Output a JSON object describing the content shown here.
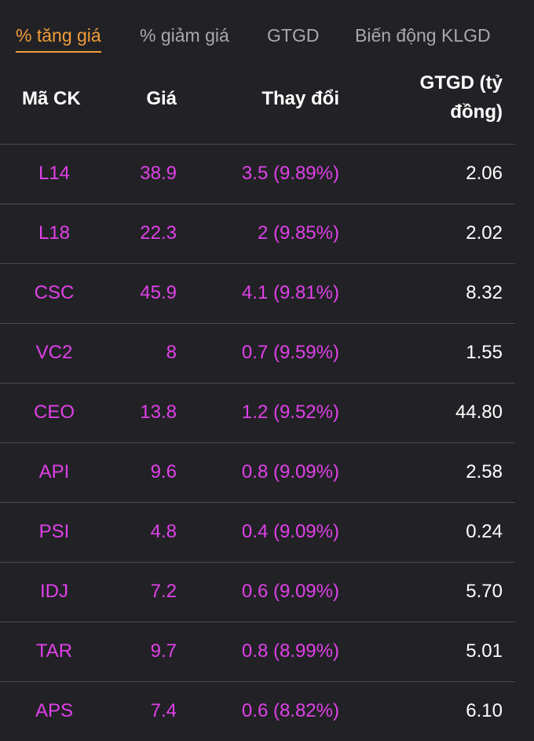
{
  "tabs": [
    {
      "label": "% tăng giá",
      "active": true
    },
    {
      "label": "% giảm giá",
      "active": false
    },
    {
      "label": "GTGD",
      "active": false
    },
    {
      "label": "Biến động KLGD",
      "active": false
    }
  ],
  "table": {
    "headers": {
      "code": "Mã CK",
      "price": "Giá",
      "change": "Thay đổi",
      "value_line1": "GTGD (tỷ",
      "value_line2": "đồng)"
    },
    "rows": [
      {
        "code": "L14",
        "price": "38.9",
        "change": "3.5 (9.89%)",
        "value": "2.06"
      },
      {
        "code": "L18",
        "price": "22.3",
        "change": "2 (9.85%)",
        "value": "2.02"
      },
      {
        "code": "CSC",
        "price": "45.9",
        "change": "4.1 (9.81%)",
        "value": "8.32"
      },
      {
        "code": "VC2",
        "price": "8",
        "change": "0.7 (9.59%)",
        "value": "1.55"
      },
      {
        "code": "CEO",
        "price": "13.8",
        "change": "1.2 (9.52%)",
        "value": "44.80"
      },
      {
        "code": "API",
        "price": "9.6",
        "change": "0.8 (9.09%)",
        "value": "2.58"
      },
      {
        "code": "PSI",
        "price": "4.8",
        "change": "0.4 (9.09%)",
        "value": "0.24"
      },
      {
        "code": "IDJ",
        "price": "7.2",
        "change": "0.6 (9.09%)",
        "value": "5.70"
      },
      {
        "code": "TAR",
        "price": "9.7",
        "change": "0.8 (8.99%)",
        "value": "5.01"
      },
      {
        "code": "APS",
        "price": "7.4",
        "change": "0.6 (8.82%)",
        "value": "6.10"
      }
    ]
  },
  "colors": {
    "background": "#222226",
    "accent": "#f29c38",
    "increase": "#e040e8",
    "tab_inactive": "#a8a8ad",
    "divider": "#4a4a50"
  }
}
